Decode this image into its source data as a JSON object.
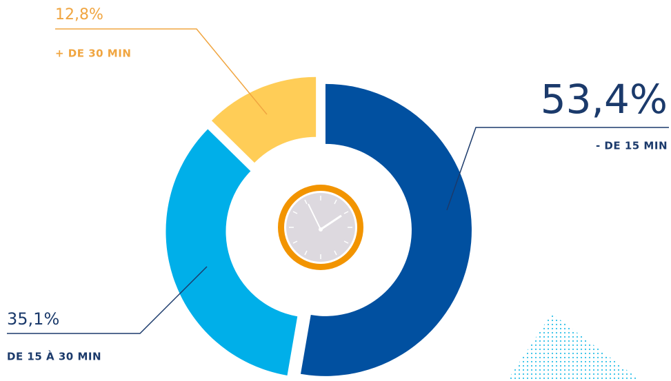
{
  "chart_data": {
    "type": "donut",
    "categories": [
      "- DE 15 MIN",
      "DE 15 À 30 MIN",
      "+ DE 30 MIN"
    ],
    "values": [
      53.4,
      35.1,
      12.8
    ],
    "value_labels": [
      "53,4%",
      "35,1%",
      "12,8%"
    ],
    "colors": [
      "#0150a0",
      "#00afe9",
      "#ffcd57"
    ]
  }
}
